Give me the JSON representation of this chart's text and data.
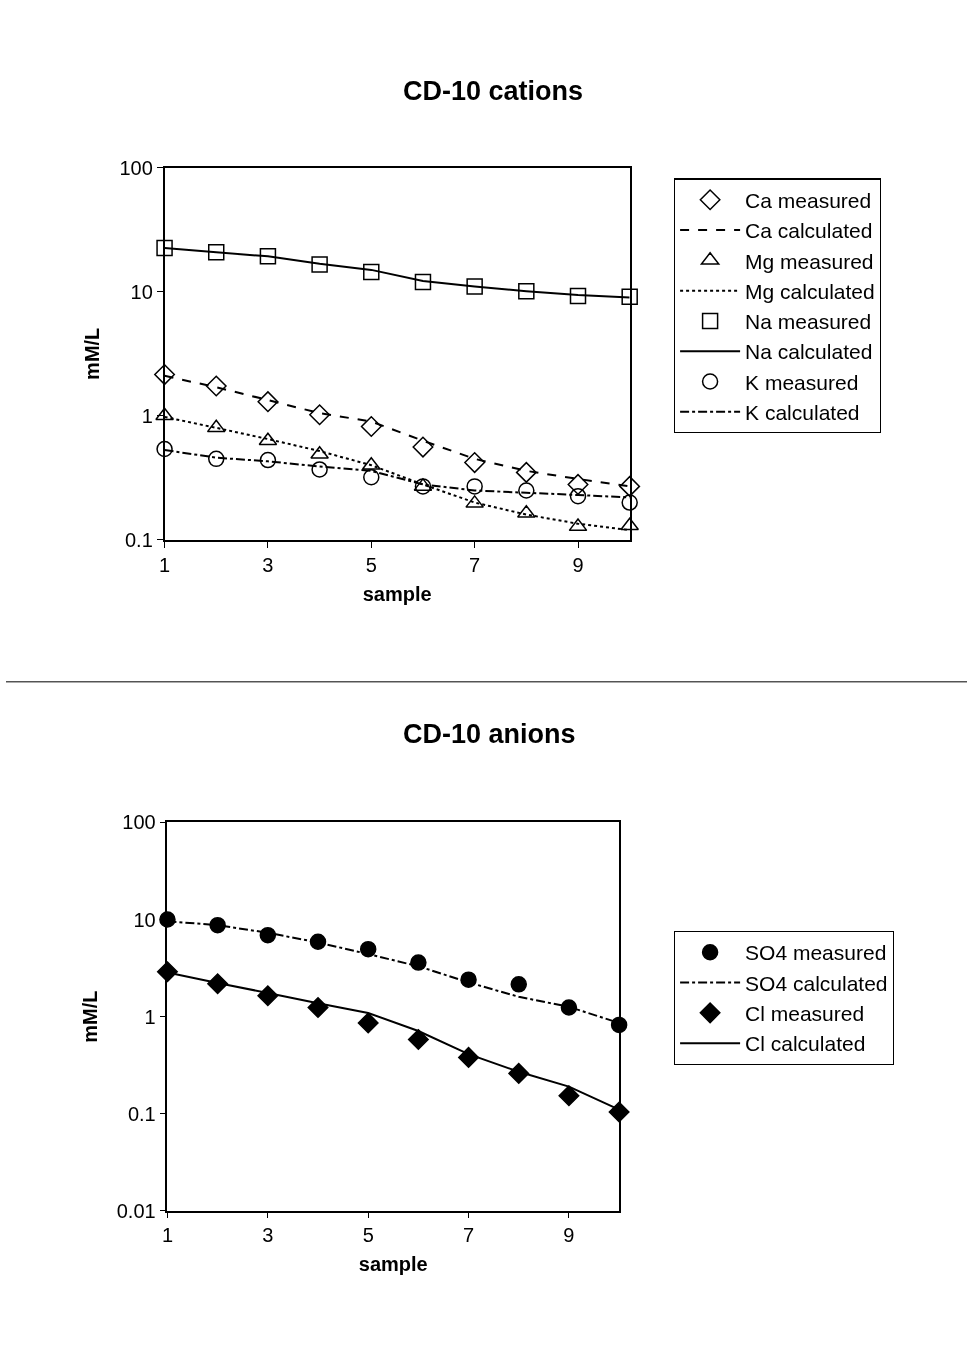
{
  "chart_data": [
    {
      "type": "scatter",
      "title": "CD-10 cations",
      "xlabel": "sample",
      "ylabel": "mM/L",
      "x": [
        1,
        2,
        3,
        4,
        5,
        6,
        7,
        8,
        9,
        10
      ],
      "xlim": [
        1,
        10
      ],
      "xticks": [
        1,
        3,
        5,
        7,
        9
      ],
      "ylim": [
        0.1,
        100
      ],
      "yticks": [
        0.1,
        1,
        10,
        100
      ],
      "log": "y",
      "grid": false,
      "legend": "right",
      "series": [
        {
          "name": "Ca measured",
          "marker": "diamond",
          "color": "#000000",
          "values": [
            2.15,
            1.74,
            1.3,
            1.02,
            0.82,
            0.56,
            0.42,
            0.35,
            0.28,
            0.27
          ]
        },
        {
          "name": "Ca calculated",
          "type": "line",
          "line_style": "dashed",
          "color": "#000000",
          "values": [
            2.1,
            1.7,
            1.34,
            1.05,
            0.9,
            0.63,
            0.45,
            0.36,
            0.31,
            0.27
          ]
        },
        {
          "name": "Mg measured",
          "marker": "triangle",
          "color": "#000000",
          "values": [
            1.0,
            0.8,
            0.63,
            0.49,
            0.4,
            0.27,
            0.197,
            0.164,
            0.128,
            0.13
          ]
        },
        {
          "name": "Mg calculated",
          "type": "line",
          "line_style": "dotted",
          "color": "#000000",
          "values": [
            0.98,
            0.8,
            0.65,
            0.52,
            0.4,
            0.28,
            0.2,
            0.16,
            0.135,
            0.12
          ]
        },
        {
          "name": "Na measured",
          "marker": "square",
          "color": "#000000",
          "values": [
            22.5,
            20.8,
            19.3,
            16.6,
            14.4,
            12.0,
            11.0,
            10.1,
            9.25,
            9.1
          ]
        },
        {
          "name": "Na calculated",
          "type": "line",
          "line_style": "solid",
          "color": "#000000",
          "values": [
            22.5,
            20.8,
            19.3,
            16.8,
            15.0,
            12.2,
            11.0,
            10.1,
            9.4,
            9.0
          ]
        },
        {
          "name": "K measured",
          "marker": "circle",
          "color": "#000000",
          "values": [
            0.54,
            0.45,
            0.44,
            0.37,
            0.32,
            0.27,
            0.27,
            0.25,
            0.225,
            0.2
          ]
        },
        {
          "name": "K calculated",
          "type": "line",
          "line_style": "dashdot",
          "color": "#000000",
          "values": [
            0.53,
            0.46,
            0.43,
            0.39,
            0.36,
            0.28,
            0.25,
            0.24,
            0.23,
            0.22
          ]
        }
      ]
    },
    {
      "type": "scatter",
      "title": "CD-10 anions",
      "xlabel": "sample",
      "ylabel": "mM/L",
      "x": [
        1,
        2,
        3,
        4,
        5,
        6,
        7,
        8,
        9,
        10
      ],
      "xlim": [
        1,
        10
      ],
      "xticks": [
        1,
        3,
        5,
        7,
        9
      ],
      "ylim": [
        0.01,
        100
      ],
      "yticks": [
        0.01,
        0.1,
        1,
        10,
        100
      ],
      "log": "y",
      "grid": false,
      "legend": "right",
      "series": [
        {
          "name": "SO4 measured",
          "marker": "circle",
          "color": "#000000",
          "values": [
            10,
            8.75,
            6.9,
            5.9,
            4.95,
            3.6,
            2.4,
            2.15,
            1.24,
            0.82
          ]
        },
        {
          "name": "SO4 calculated",
          "type": "line",
          "line_style": "dashdot",
          "color": "#000000",
          "values": [
            9.6,
            8.75,
            7.3,
            5.8,
            4.4,
            3.3,
            2.25,
            1.6,
            1.26,
            0.86
          ]
        },
        {
          "name": "Cl measured",
          "marker": "diamond",
          "color": "#000000",
          "values": [
            2.9,
            2.18,
            1.64,
            1.24,
            0.86,
            0.58,
            0.38,
            0.26,
            0.153,
            0.104
          ]
        },
        {
          "name": "Cl calculated",
          "type": "line",
          "line_style": "solid",
          "color": "#000000",
          "values": [
            2.85,
            2.22,
            1.75,
            1.37,
            1.09,
            0.71,
            0.41,
            0.27,
            0.19,
            0.11
          ]
        }
      ]
    }
  ]
}
